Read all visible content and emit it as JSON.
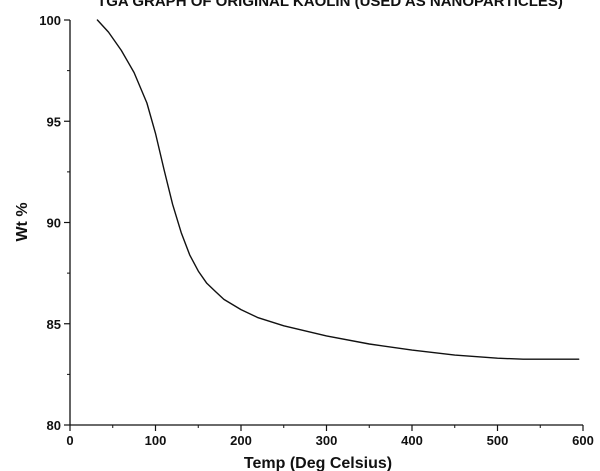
{
  "chart_data": {
    "type": "line",
    "title": "TGA GRAPH OF ORIGINAL KAOLIN (USED AS NANOPARTICLES)",
    "xlabel": "Temp (Deg Celsius)",
    "ylabel": "Wt %",
    "xlim": [
      0,
      600
    ],
    "ylim": [
      80,
      100
    ],
    "xticks": [
      0,
      100,
      200,
      300,
      400,
      500,
      600
    ],
    "yticks": [
      80,
      85,
      90,
      95,
      100
    ],
    "grid": false,
    "legend": "none",
    "line_color": "#111111",
    "series": [
      {
        "x": [
          32,
          45,
          60,
          75,
          90,
          100,
          110,
          120,
          130,
          140,
          150,
          160,
          170,
          180,
          200,
          220,
          250,
          300,
          350,
          400,
          450,
          500,
          530,
          560,
          595
        ],
        "y": [
          100.0,
          99.4,
          98.5,
          97.4,
          95.9,
          94.4,
          92.6,
          90.9,
          89.5,
          88.4,
          87.6,
          87.0,
          86.6,
          86.2,
          85.7,
          85.3,
          84.9,
          84.4,
          84.0,
          83.7,
          83.45,
          83.3,
          83.25,
          83.25,
          83.25
        ]
      }
    ]
  }
}
